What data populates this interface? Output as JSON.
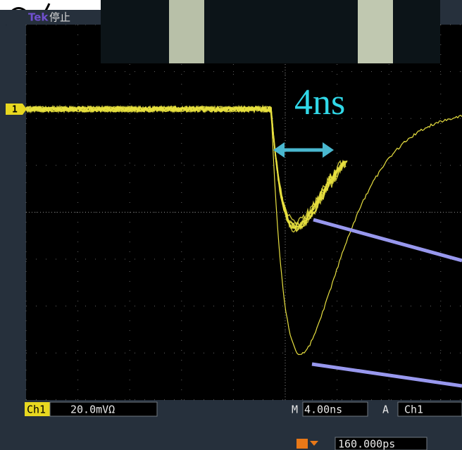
{
  "header": {
    "brand": "Tek",
    "status": "停止"
  },
  "channel_marker": "1",
  "annotation": "4ns",
  "status_bar": {
    "channel": "Ch1",
    "scale": "20.0mVΩ",
    "time_label": "M",
    "time_scale": "4.00ns",
    "trigger_label": "A",
    "trigger_source": "Ch1",
    "trigger_position": "160.000ps"
  }
}
